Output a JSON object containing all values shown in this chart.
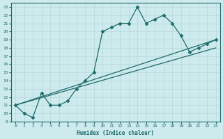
{
  "xlabel": "Humidex (Indice chaleur)",
  "background_color": "#cdeaed",
  "line_color": "#1f6b6b",
  "grid_color": "#b8d8da",
  "xlim": [
    -0.5,
    23.5
  ],
  "ylim": [
    9,
    23.5
  ],
  "xticks": [
    0,
    1,
    2,
    3,
    4,
    5,
    6,
    7,
    8,
    9,
    10,
    11,
    12,
    13,
    14,
    15,
    16,
    17,
    18,
    19,
    20,
    21,
    22,
    23
  ],
  "yticks": [
    9,
    10,
    11,
    12,
    13,
    14,
    15,
    16,
    17,
    18,
    19,
    20,
    21,
    22,
    23
  ],
  "series1_x": [
    0,
    1,
    2,
    3,
    4,
    5,
    6,
    7,
    8,
    9,
    10,
    11,
    12,
    13,
    14,
    15,
    16,
    17,
    18,
    19,
    20,
    21,
    22,
    23
  ],
  "series1_y": [
    11,
    10,
    9.5,
    12.5,
    11,
    11,
    11.5,
    13,
    14,
    15,
    20,
    20.5,
    21,
    21,
    23,
    21,
    21.5,
    22,
    21,
    19.5,
    17.5,
    18,
    18.5,
    19
  ],
  "series2_x": [
    0,
    23
  ],
  "series2_y": [
    11,
    19
  ],
  "series3_x": [
    0,
    23
  ],
  "series3_y": [
    11,
    18
  ]
}
